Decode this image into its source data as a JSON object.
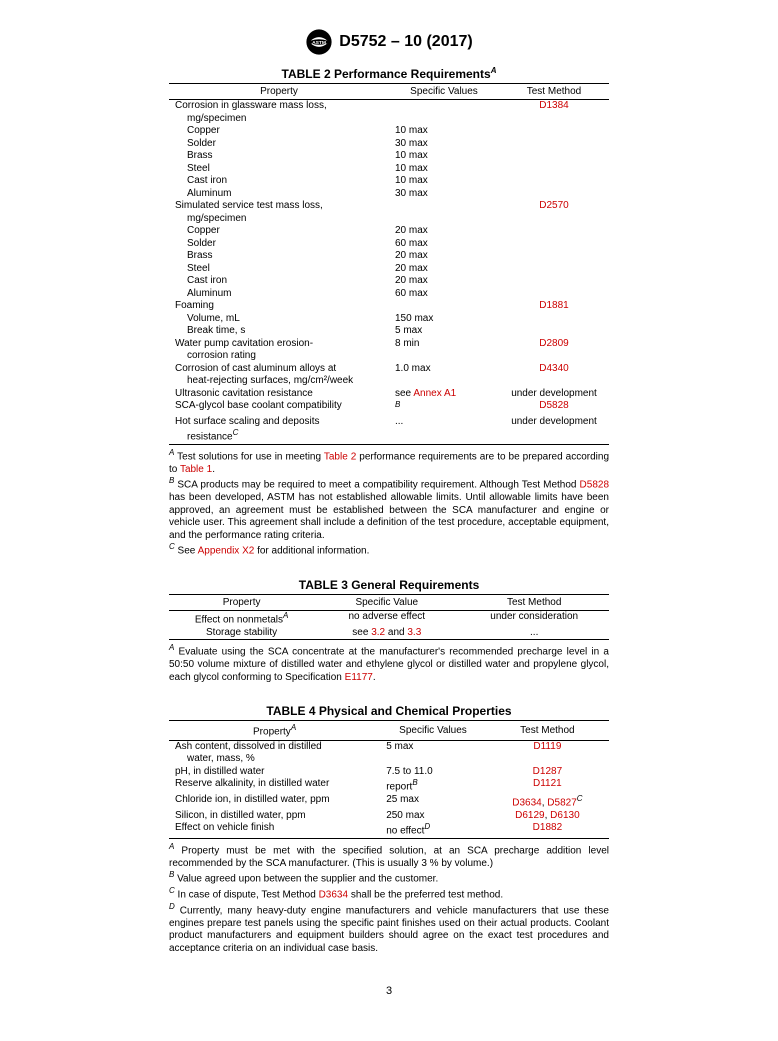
{
  "doc_id": "D5752 – 10 (2017)",
  "page_number": "3",
  "tables": {
    "t2": {
      "title_prefix": "TABLE 2 Performance Requirements",
      "title_sup": "A",
      "columns": [
        "Property",
        "Specific Values",
        "Test Method"
      ],
      "rows": [
        {
          "prop": "Corrosion in glassware mass loss,",
          "val": "",
          "meth_link": "D1384"
        },
        {
          "sub": "mg/specimen",
          "val": "",
          "meth": ""
        },
        {
          "sub": "Copper",
          "val": "10 max",
          "meth": ""
        },
        {
          "sub": "Solder",
          "val": "30 max",
          "meth": ""
        },
        {
          "sub": "Brass",
          "val": "10 max",
          "meth": ""
        },
        {
          "sub": "Steel",
          "val": "10 max",
          "meth": ""
        },
        {
          "sub": "Cast iron",
          "val": "10 max",
          "meth": ""
        },
        {
          "sub": "Aluminum",
          "val": "30 max",
          "meth": ""
        },
        {
          "prop": "Simulated service test mass loss,",
          "val": "",
          "meth_link": "D2570"
        },
        {
          "sub": "mg/specimen",
          "val": "",
          "meth": ""
        },
        {
          "sub": "Copper",
          "val": "20 max",
          "meth": ""
        },
        {
          "sub": "Solder",
          "val": "60 max",
          "meth": ""
        },
        {
          "sub": "Brass",
          "val": "20 max",
          "meth": ""
        },
        {
          "sub": "Steel",
          "val": "20 max",
          "meth": ""
        },
        {
          "sub": "Cast iron",
          "val": "20 max",
          "meth": ""
        },
        {
          "sub": "Aluminum",
          "val": "60 max",
          "meth": ""
        },
        {
          "prop": "Foaming",
          "val": "",
          "meth_link": "D1881"
        },
        {
          "sub": "Volume, mL",
          "val": "150 max",
          "meth": ""
        },
        {
          "sub": "Break time, s",
          "val": "5 max",
          "meth": ""
        },
        {
          "prop": "Water pump cavitation erosion-",
          "val": "8 min",
          "meth_link": "D2809"
        },
        {
          "sub": "corrosion rating",
          "val": "",
          "meth": ""
        },
        {
          "prop": "Corrosion of cast aluminum alloys at",
          "val": "1.0 max",
          "meth_link": "D4340"
        },
        {
          "sub": "heat-rejecting surfaces, mg/cm²/week",
          "val": "",
          "meth": ""
        },
        {
          "prop": "Ultrasonic cavitation resistance",
          "val_pre": "see ",
          "val_link": "Annex A1",
          "meth": "under development"
        },
        {
          "prop": "SCA-glycol base coolant compatibility",
          "val_sup": "B",
          "meth_link": "D5828"
        },
        {
          "prop": "Hot surface scaling and deposits",
          "val": "...",
          "meth": "under development"
        },
        {
          "sub_sup_prefix": "resistance",
          "sub_sup": "C",
          "val": "",
          "meth": ""
        }
      ],
      "footnotes": [
        {
          "letter": "A",
          "pre": " Test solutions for use in meeting ",
          "link1": "Table 2",
          "mid": " performance requirements are to be prepared according to ",
          "link2": "Table 1",
          "post": "."
        },
        {
          "letter": "B",
          "pre": " SCA products may be required to meet a compatibility requirement. Although Test Method ",
          "link1": "D5828",
          "post": " has been developed, ASTM has not established allowable limits. Until allowable limits have been approved, an agreement must be established between the SCA manufacturer and engine or vehicle user. This agreement shall include a definition of the test procedure, acceptable equipment, and the performance rating criteria."
        },
        {
          "letter": "C",
          "pre": " See ",
          "link1": "Appendix X2",
          "post": " for additional information."
        }
      ]
    },
    "t3": {
      "title": "TABLE 3 General Requirements",
      "columns": [
        "Property",
        "Specific Value",
        "Test Method"
      ],
      "rows": [
        {
          "prop": "Effect on nonmetals",
          "prop_sup": "A",
          "val": "no adverse effect",
          "meth": "under consideration"
        },
        {
          "prop": "Storage stability",
          "val_pre": "see ",
          "val_link1": "3.2",
          "val_mid": " and ",
          "val_link2": "3.3",
          "meth": "..."
        }
      ],
      "footnotes": [
        {
          "letter": "A",
          "pre": " Evaluate using the SCA concentrate at the manufacturer's recommended precharge level in a 50:50 volume mixture of distilled water and ethylene glycol or distilled water and propylene glycol, each glycol conforming to Specification ",
          "link1": "E1177",
          "post": "."
        }
      ]
    },
    "t4": {
      "title": "TABLE 4 Physical and Chemical Properties",
      "columns": [
        "Property",
        "Specific Values",
        "Test Method"
      ],
      "col0_sup": "A",
      "rows": [
        {
          "prop": "Ash content, dissolved in distilled",
          "val": "5 max",
          "meth_link": "D1119"
        },
        {
          "sub": "water, mass, %",
          "val": "",
          "meth": ""
        },
        {
          "prop": "pH, in distilled water",
          "val": "7.5 to 11.0",
          "meth_link": "D1287"
        },
        {
          "prop": "Reserve alkalinity, in distilled water",
          "val": "report",
          "val_sup": "B",
          "meth_link": "D1121"
        },
        {
          "prop": "Chloride ion, in distilled water, ppm",
          "val": "25 max",
          "meth_link": "D3634",
          "meth_post": ", ",
          "meth_link2": "D5827",
          "meth_sup": "C"
        },
        {
          "prop": "Silicon, in distilled water, ppm",
          "val": "250 max",
          "meth_link": "D6129",
          "meth_post": ", ",
          "meth_link2": "D6130"
        },
        {
          "prop": "Effect on vehicle finish",
          "val": "no effect",
          "val_sup": "D",
          "meth_link": "D1882"
        }
      ],
      "footnotes": [
        {
          "letter": "A",
          "text": " Property must be met with the specified solution, at an SCA precharge addition level recommended by the SCA manufacturer. (This is usually 3 % by volume.)"
        },
        {
          "letter": "B",
          "text": " Value agreed upon between the supplier and the customer."
        },
        {
          "letter": "C",
          "pre": " In case of dispute, Test Method ",
          "link1": "D3634",
          "post": " shall be the preferred test method."
        },
        {
          "letter": "D",
          "text": " Currently, many heavy-duty engine manufacturers and vehicle manufacturers that use these engines prepare test panels using the specific paint finishes used on their actual products. Coolant product manufacturers and equipment builders should agree on the exact test procedures and acceptance criteria on an individual case basis."
        }
      ]
    }
  }
}
